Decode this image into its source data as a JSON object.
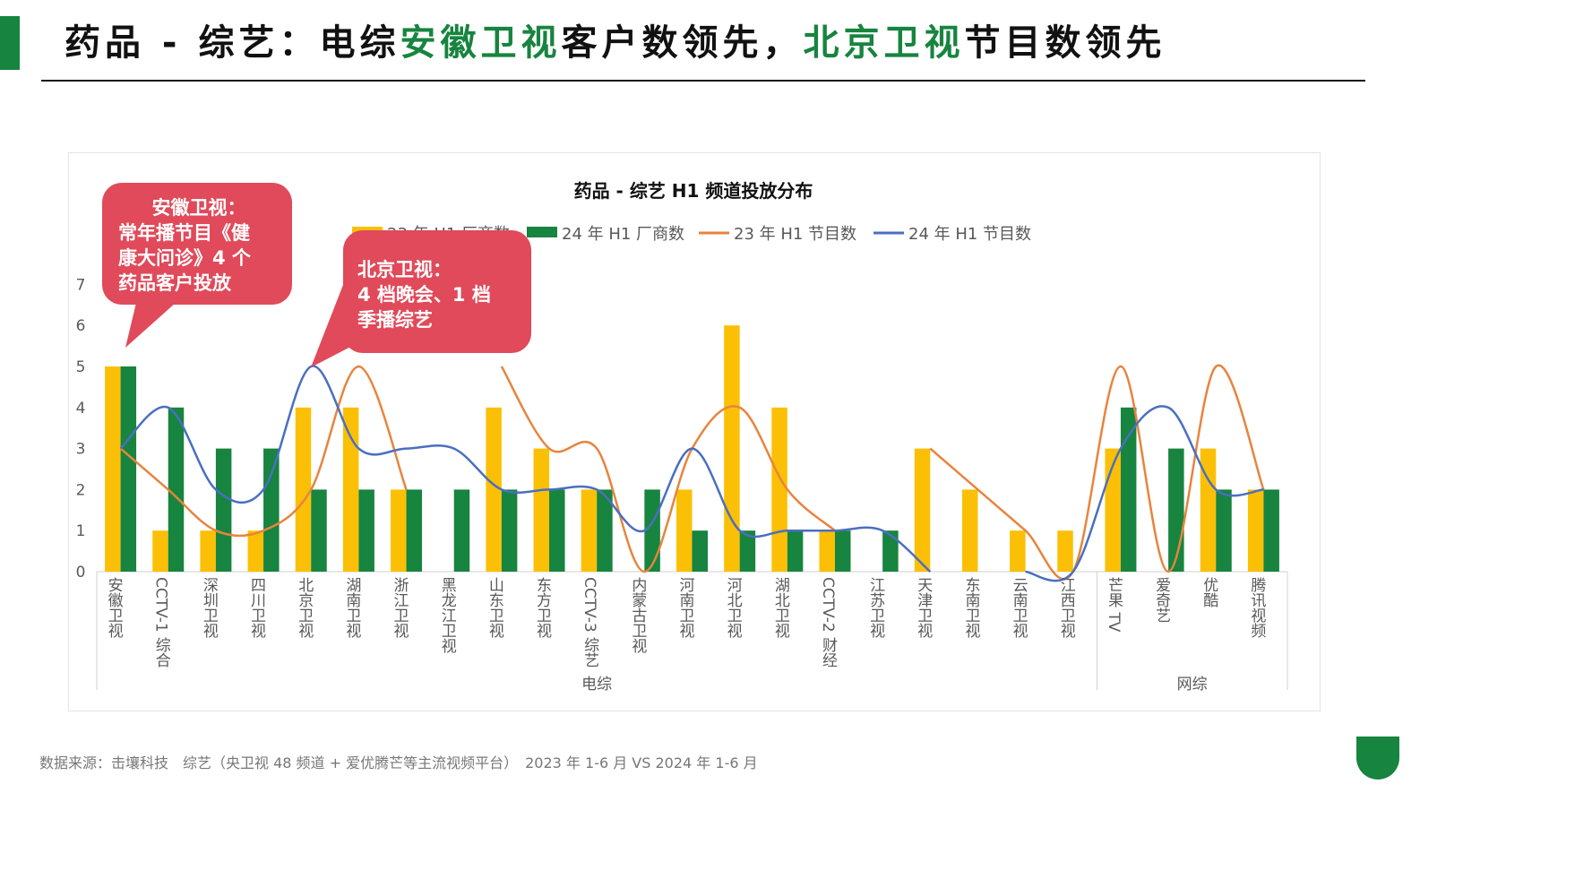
{
  "header": {
    "title_parts": [
      {
        "text": "药品 - 综艺：电综",
        "hl": false
      },
      {
        "text": "安徽卫视",
        "hl": true
      },
      {
        "text": "客户数领先，",
        "hl": false
      },
      {
        "text": "北京卫视",
        "hl": true
      },
      {
        "text": "节目数领先",
        "hl": false
      }
    ]
  },
  "colors": {
    "accent": "#17843f",
    "bar_23": "#fbc005",
    "bar_24": "#17843f",
    "line_23": "#e8843d",
    "line_24": "#4a6fc0",
    "callout": "#e04a5a"
  },
  "callouts": [
    {
      "lines": [
        "安徽卫视：",
        "常年播节目《健",
        "康大问诊》4 个",
        "药品客户投放"
      ]
    },
    {
      "lines": [
        "北京卫视：",
        "4 档晚会、1 档",
        "季播综艺"
      ]
    }
  ],
  "chart_data": {
    "type": "bar",
    "title": "药品 - 综艺 H1 频道投放分布",
    "ylim": [
      0,
      7
    ],
    "yticks": [
      0,
      1,
      2,
      3,
      4,
      5,
      6,
      7
    ],
    "categories": [
      "安徽卫视",
      "CCTV-1 综合",
      "深圳卫视",
      "四川卫视",
      "北京卫视",
      "湖南卫视",
      "浙江卫视",
      "黑龙江卫视",
      "山东卫视",
      "东方卫视",
      "CCTV-3 综艺",
      "内蒙古卫视",
      "河南卫视",
      "河北卫视",
      "湖北卫视",
      "CCTV-2 财经",
      "江苏卫视",
      "天津卫视",
      "东南卫视",
      "云南卫视",
      "江西卫视",
      "芒果 TV",
      "爱奇艺",
      "优酷",
      "腾讯视频"
    ],
    "groups": [
      {
        "label": "电综",
        "start": 0,
        "end": 20
      },
      {
        "label": "网综",
        "start": 21,
        "end": 24
      }
    ],
    "series": [
      {
        "name": "23 年 H1 厂商数",
        "kind": "bar",
        "values": [
          5,
          1,
          1,
          1,
          4,
          4,
          2,
          0,
          4,
          3,
          2,
          0,
          2,
          6,
          4,
          1,
          0,
          3,
          2,
          1,
          1,
          3,
          0,
          3,
          2
        ]
      },
      {
        "name": "24 年 H1 厂商数",
        "kind": "bar",
        "values": [
          5,
          4,
          3,
          3,
          2,
          2,
          2,
          2,
          2,
          2,
          2,
          2,
          1,
          1,
          1,
          1,
          1,
          0,
          0,
          0,
          0,
          4,
          3,
          2,
          2
        ]
      },
      {
        "name": "23 年 H1 节目数",
        "kind": "line",
        "values": [
          3,
          2,
          1,
          1,
          2,
          5,
          2,
          null,
          5,
          3,
          3,
          0,
          3,
          4,
          2,
          1,
          null,
          3,
          2,
          1,
          0,
          5,
          0,
          5,
          2
        ]
      },
      {
        "name": "24 年 H1 节目数",
        "kind": "line",
        "values": [
          3,
          4,
          2,
          2,
          5,
          3,
          3,
          3,
          2,
          2,
          2,
          1,
          3,
          1,
          1,
          1,
          1,
          0,
          null,
          0,
          0,
          3,
          4,
          2,
          2
        ]
      }
    ]
  },
  "footer": {
    "source": "数据来源：击壤科技　综艺（央卫视 48 频道 + 爱优腾芒等主流视频平台）　2023 年 1-6 月 VS 2024 年 1-6 月"
  }
}
